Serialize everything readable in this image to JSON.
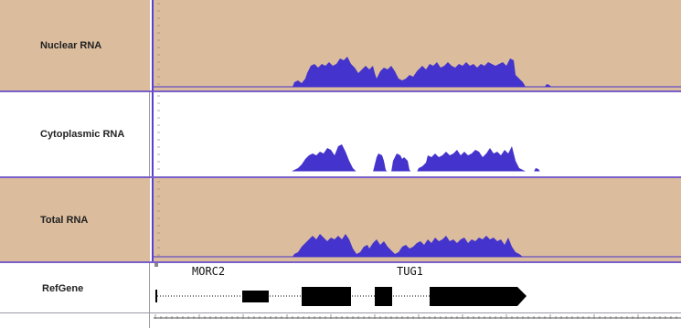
{
  "tracks": [
    {
      "label": "Nuclear RNA",
      "key": "nuclear"
    },
    {
      "label": "Cytoplasmic RNA",
      "key": "cytoplasmic"
    },
    {
      "label": "Total RNA",
      "key": "total"
    }
  ],
  "refgene": {
    "label": "RefGene",
    "genes": [
      "MORC2",
      "TUG1"
    ]
  },
  "colors": {
    "coverage_fill": "#4433cc",
    "track_bg_tan": "#dbbd9e",
    "separator": "#7a5fc8",
    "gene_feature": "#000000"
  },
  "icons": [
    "strand-arrow-icon"
  ]
}
